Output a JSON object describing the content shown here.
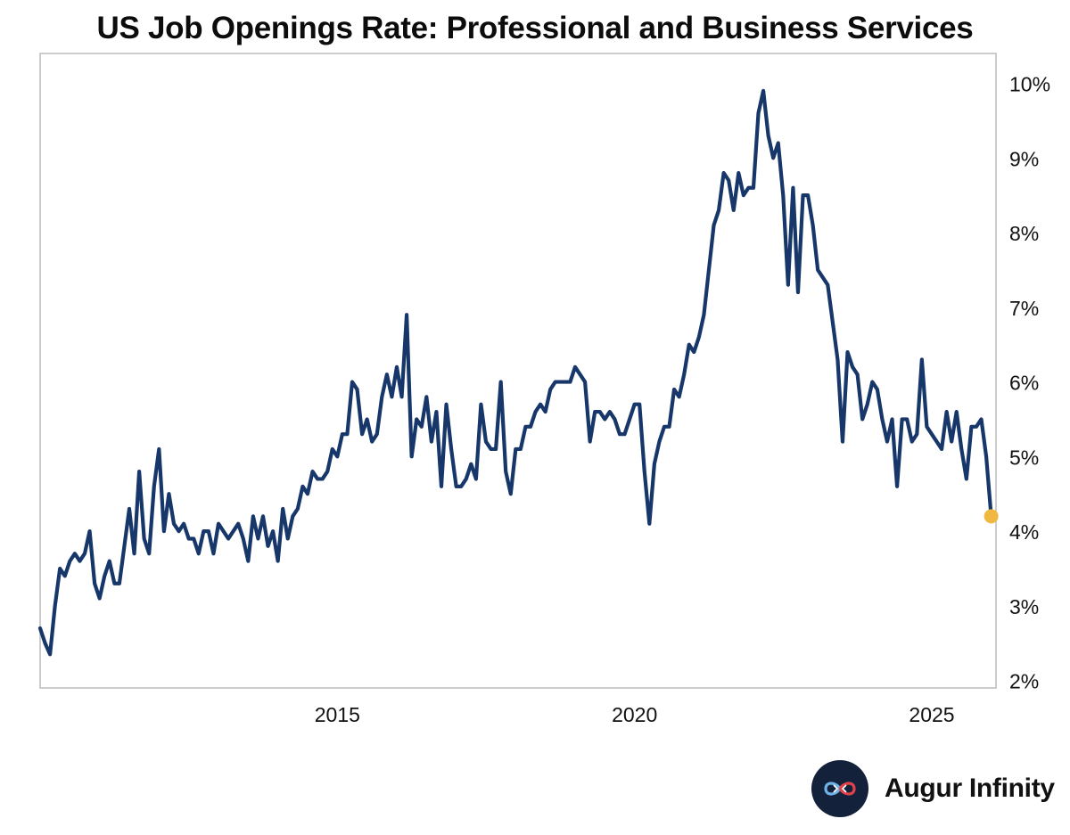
{
  "colors": {
    "line": "#17376a",
    "endpoint": "#f0b840",
    "frame": "#cccccc",
    "logo_bg": "#13213a"
  },
  "brand": {
    "name": "Augur Infinity",
    "logo_icon": "infinity-icon"
  },
  "chart_data": {
    "type": "line",
    "title": "US Job Openings Rate: Professional and Business Services",
    "xlabel": "",
    "ylabel": "",
    "x_start": 2010.0,
    "x_step": 0.08333,
    "xlim": [
      2010.0,
      2026.08
    ],
    "ylim": [
      1.9,
      10.4
    ],
    "y_axis_side": "right",
    "xticks": [
      2015,
      2020,
      2025
    ],
    "xtick_labels": [
      "2015",
      "2020",
      "2025"
    ],
    "yticks": [
      2,
      3,
      4,
      5,
      6,
      7,
      8,
      9,
      10
    ],
    "ytick_labels": [
      "2%",
      "3%",
      "4%",
      "5%",
      "6%",
      "7%",
      "8%",
      "9%",
      "10%"
    ],
    "series": [
      {
        "name": "Job Openings Rate: Professional and Business Services",
        "values": [
          2.7,
          2.5,
          2.35,
          3.0,
          3.5,
          3.4,
          3.6,
          3.7,
          3.6,
          3.7,
          4.0,
          3.3,
          3.1,
          3.4,
          3.6,
          3.3,
          3.3,
          3.8,
          4.3,
          3.7,
          4.8,
          3.9,
          3.7,
          4.6,
          5.1,
          4.0,
          4.5,
          4.1,
          4.0,
          4.1,
          3.9,
          3.9,
          3.7,
          4.0,
          4.0,
          3.7,
          4.1,
          4.0,
          3.9,
          4.0,
          4.1,
          3.9,
          3.6,
          4.2,
          3.9,
          4.2,
          3.8,
          4.0,
          3.6,
          4.3,
          3.9,
          4.2,
          4.3,
          4.6,
          4.5,
          4.8,
          4.7,
          4.7,
          4.8,
          5.1,
          5.0,
          5.3,
          5.3,
          6.0,
          5.9,
          5.3,
          5.5,
          5.2,
          5.3,
          5.8,
          6.1,
          5.8,
          6.2,
          5.8,
          6.9,
          5.0,
          5.5,
          5.4,
          5.8,
          5.2,
          5.6,
          4.6,
          5.7,
          5.1,
          4.6,
          4.6,
          4.7,
          4.9,
          4.7,
          5.7,
          5.2,
          5.1,
          5.1,
          6.0,
          4.8,
          4.5,
          5.1,
          5.1,
          5.4,
          5.4,
          5.6,
          5.7,
          5.6,
          5.9,
          6.0,
          6.0,
          6.0,
          6.0,
          6.2,
          6.1,
          6.0,
          5.2,
          5.6,
          5.6,
          5.5,
          5.6,
          5.5,
          5.3,
          5.3,
          5.5,
          5.7,
          5.7,
          4.8,
          4.1,
          4.9,
          5.2,
          5.4,
          5.4,
          5.9,
          5.8,
          6.1,
          6.5,
          6.4,
          6.6,
          6.9,
          7.5,
          8.1,
          8.3,
          8.8,
          8.7,
          8.3,
          8.8,
          8.5,
          8.6,
          8.6,
          9.6,
          9.9,
          9.3,
          9.0,
          9.2,
          8.5,
          7.3,
          8.6,
          7.2,
          8.5,
          8.5,
          8.1,
          7.5,
          7.4,
          7.3,
          6.8,
          6.3,
          5.2,
          6.4,
          6.2,
          6.1,
          5.5,
          5.7,
          6.0,
          5.9,
          5.5,
          5.2,
          5.5,
          4.6,
          5.5,
          5.5,
          5.2,
          5.3,
          6.3,
          5.4,
          5.3,
          5.2,
          5.1,
          5.6,
          5.2,
          5.6,
          5.1,
          4.7,
          5.4,
          5.4,
          5.5,
          5.0,
          4.2
        ]
      }
    ]
  }
}
